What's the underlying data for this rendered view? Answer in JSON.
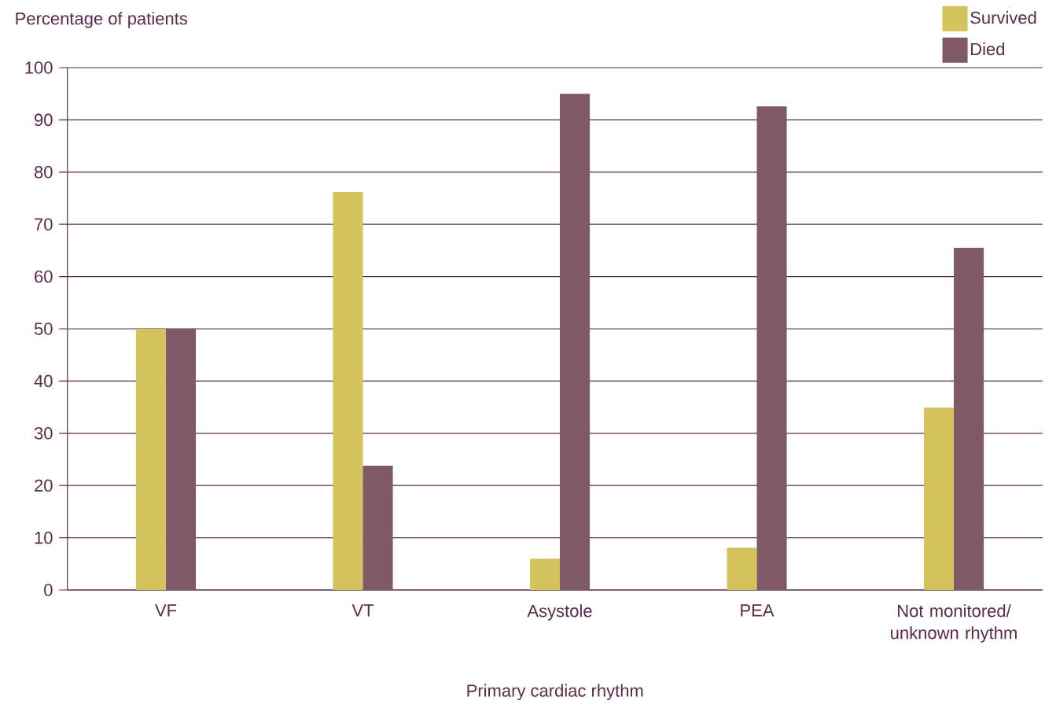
{
  "chart_data": {
    "type": "bar",
    "xlabel": "Primary cardiac rhythm",
    "ylabel": "Percentage of patients",
    "categories": [
      "VF",
      "VT",
      "Asystole",
      "PEA",
      "Not monitored/ unknown rhythm"
    ],
    "series": [
      {
        "name": "Survived",
        "color": "#d4c35a",
        "values": [
          50,
          76.2,
          6,
          8.1,
          34.9
        ]
      },
      {
        "name": "Died",
        "color": "#7f5a66",
        "values": [
          50,
          23.8,
          95,
          92.6,
          65.5
        ]
      }
    ],
    "ylim": [
      0,
      100
    ],
    "yticks": [
      0,
      10,
      20,
      30,
      40,
      50,
      60,
      70,
      80,
      90,
      100
    ],
    "grid": "y",
    "legend": "top right"
  }
}
